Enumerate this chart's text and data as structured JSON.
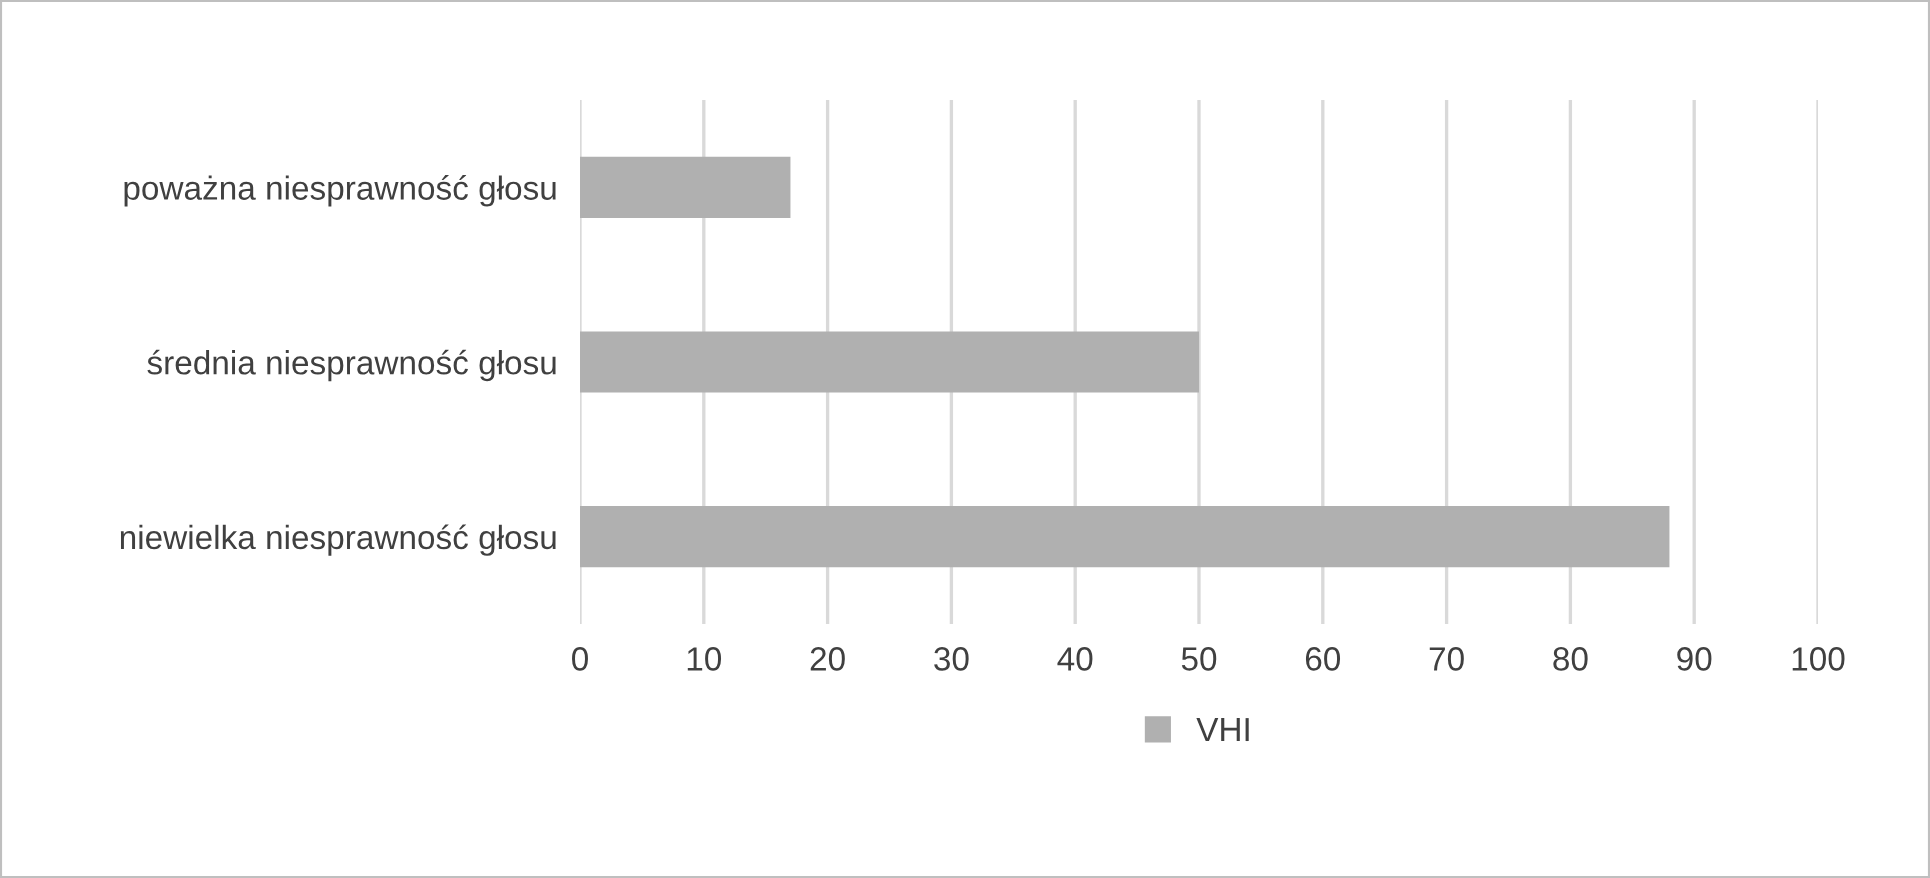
{
  "chart_data": {
    "type": "bar",
    "orientation": "horizontal",
    "categories": [
      "poważna niesprawność głosu",
      "średnia niesprawność głosu",
      "niewielka niesprawność głosu"
    ],
    "series": [
      {
        "name": "VHI",
        "color": "#b0b0b0",
        "values": [
          17,
          50,
          88
        ]
      }
    ],
    "xlim": [
      0,
      100
    ],
    "xticks": [
      0,
      10,
      20,
      30,
      40,
      50,
      60,
      70,
      80,
      90,
      100
    ],
    "grid": "x",
    "legend": "bottom"
  }
}
